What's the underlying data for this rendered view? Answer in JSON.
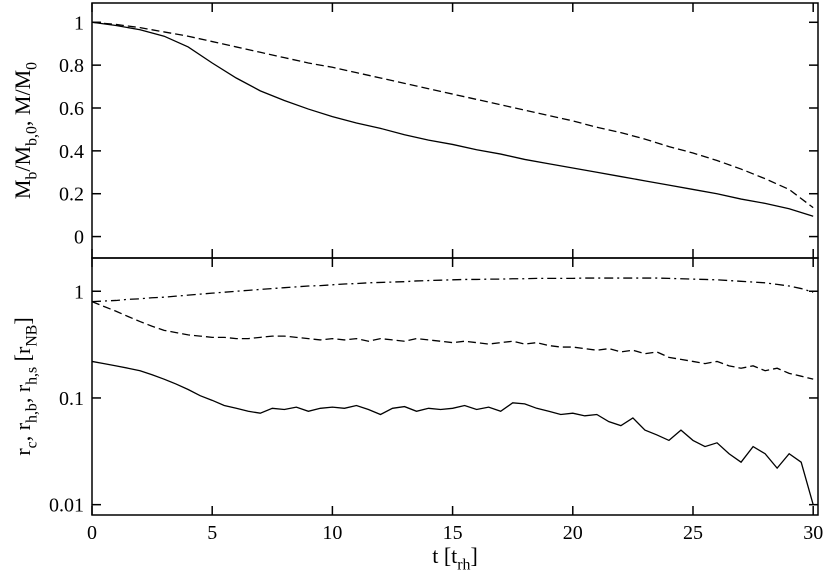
{
  "chart_data": [
    {
      "type": "line",
      "ylabel": [
        "M",
        "b",
        "/M",
        "b,0",
        ", M/M",
        "0"
      ],
      "x": [
        0,
        1,
        2,
        3,
        4,
        5,
        6,
        7,
        8,
        9,
        10,
        11,
        12,
        13,
        14,
        15,
        16,
        17,
        18,
        19,
        20,
        21,
        22,
        23,
        24,
        25,
        26,
        27,
        28,
        29,
        30
      ],
      "series": [
        {
          "color": "#000000",
          "style": "solid",
          "values": [
            1.0,
            0.985,
            0.965,
            0.935,
            0.885,
            0.81,
            0.74,
            0.68,
            0.635,
            0.595,
            0.56,
            0.53,
            0.505,
            0.475,
            0.45,
            0.43,
            0.405,
            0.385,
            0.36,
            0.34,
            0.32,
            0.3,
            0.28,
            0.26,
            0.24,
            0.22,
            0.2,
            0.175,
            0.155,
            0.13,
            0.095
          ]
        },
        {
          "color": "#000000",
          "style": "dashed",
          "values": [
            1.0,
            0.99,
            0.975,
            0.955,
            0.935,
            0.91,
            0.885,
            0.86,
            0.835,
            0.81,
            0.79,
            0.765,
            0.74,
            0.715,
            0.69,
            0.665,
            0.64,
            0.615,
            0.59,
            0.565,
            0.54,
            0.51,
            0.485,
            0.455,
            0.42,
            0.39,
            0.355,
            0.315,
            0.27,
            0.22,
            0.135
          ]
        }
      ],
      "xlim": [
        0,
        30.2
      ],
      "xticks": [
        0,
        5,
        10,
        15,
        20,
        25,
        30
      ],
      "ylim": [
        -0.1,
        1.09
      ],
      "yticks": [
        0,
        0.2,
        0.4,
        0.6,
        0.8,
        1
      ]
    },
    {
      "type": "line",
      "xlabel": [
        "t [t",
        "rh",
        "]"
      ],
      "ylabel": [
        "r",
        "c",
        ", r",
        "h,b",
        ", r",
        "h,s",
        " [r",
        "NB",
        "]"
      ],
      "x": [
        0,
        0.5,
        1,
        1.5,
        2,
        2.5,
        3,
        3.5,
        4,
        4.5,
        5,
        5.5,
        6,
        6.5,
        7,
        7.5,
        8,
        8.5,
        9,
        9.5,
        10,
        10.5,
        11,
        11.5,
        12,
        12.5,
        13,
        13.5,
        14,
        14.5,
        15,
        15.5,
        16,
        16.5,
        17,
        17.5,
        18,
        18.5,
        19,
        19.5,
        20,
        20.5,
        21,
        21.5,
        22,
        22.5,
        23,
        23.5,
        24,
        24.5,
        25,
        25.5,
        26,
        26.5,
        27,
        27.5,
        28,
        28.5,
        29,
        29.5,
        30
      ],
      "series": [
        {
          "color": "#000000",
          "style": "solid",
          "values": [
            0.22,
            0.21,
            0.2,
            0.19,
            0.18,
            0.165,
            0.15,
            0.135,
            0.12,
            0.105,
            0.095,
            0.085,
            0.08,
            0.075,
            0.072,
            0.08,
            0.078,
            0.082,
            0.075,
            0.08,
            0.082,
            0.08,
            0.085,
            0.078,
            0.07,
            0.08,
            0.083,
            0.075,
            0.08,
            0.078,
            0.08,
            0.085,
            0.078,
            0.082,
            0.075,
            0.09,
            0.088,
            0.08,
            0.075,
            0.07,
            0.072,
            0.068,
            0.07,
            0.06,
            0.055,
            0.065,
            0.05,
            0.045,
            0.04,
            0.05,
            0.04,
            0.035,
            0.038,
            0.03,
            0.025,
            0.035,
            0.03,
            0.022,
            0.03,
            0.025,
            0.01
          ]
        },
        {
          "color": "#000000",
          "style": "dashed",
          "values": [
            0.8,
            0.72,
            0.65,
            0.58,
            0.52,
            0.47,
            0.43,
            0.41,
            0.39,
            0.38,
            0.37,
            0.37,
            0.36,
            0.36,
            0.37,
            0.38,
            0.38,
            0.37,
            0.36,
            0.35,
            0.36,
            0.35,
            0.36,
            0.34,
            0.36,
            0.35,
            0.34,
            0.36,
            0.35,
            0.34,
            0.33,
            0.34,
            0.33,
            0.32,
            0.33,
            0.34,
            0.32,
            0.33,
            0.31,
            0.3,
            0.3,
            0.29,
            0.28,
            0.29,
            0.27,
            0.28,
            0.26,
            0.27,
            0.24,
            0.23,
            0.22,
            0.21,
            0.22,
            0.2,
            0.19,
            0.2,
            0.18,
            0.19,
            0.17,
            0.16,
            0.15
          ]
        },
        {
          "color": "#000000",
          "style": "dashdot",
          "values": [
            0.8,
            0.81,
            0.82,
            0.84,
            0.85,
            0.87,
            0.88,
            0.9,
            0.92,
            0.94,
            0.96,
            0.98,
            1.0,
            1.02,
            1.04,
            1.06,
            1.08,
            1.1,
            1.12,
            1.13,
            1.15,
            1.17,
            1.18,
            1.2,
            1.21,
            1.22,
            1.23,
            1.25,
            1.26,
            1.27,
            1.28,
            1.29,
            1.29,
            1.3,
            1.3,
            1.31,
            1.31,
            1.32,
            1.32,
            1.32,
            1.32,
            1.33,
            1.33,
            1.33,
            1.33,
            1.33,
            1.33,
            1.33,
            1.32,
            1.31,
            1.3,
            1.29,
            1.28,
            1.26,
            1.24,
            1.22,
            1.2,
            1.16,
            1.12,
            1.06,
            0.98
          ]
        }
      ],
      "xlim": [
        0,
        30.2
      ],
      "xticks": [
        0,
        5,
        10,
        15,
        20,
        25,
        30
      ],
      "ylim": [
        0.008,
        2.05
      ],
      "yticks": [
        0.01,
        0.1,
        1
      ],
      "log_y": true
    }
  ]
}
